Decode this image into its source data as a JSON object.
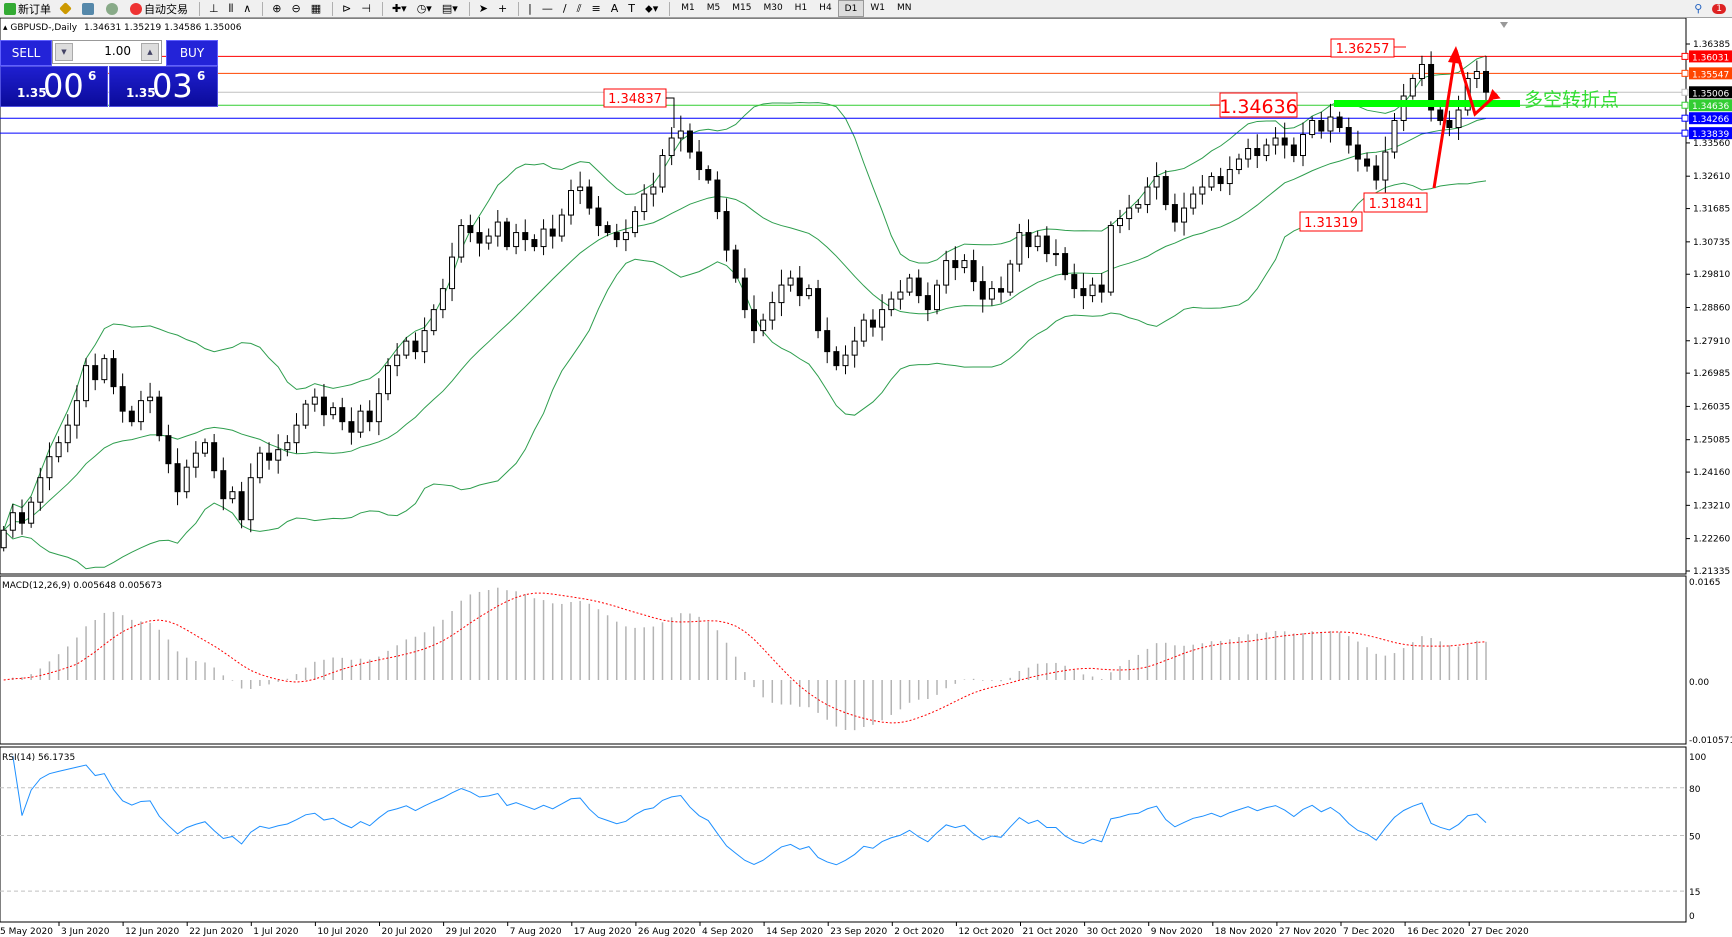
{
  "toolbar": {
    "new_order": "新订单",
    "auto_trading": "自动交易",
    "timeframes": [
      "M1",
      "M5",
      "M15",
      "M30",
      "H1",
      "H4",
      "D1",
      "W1",
      "MN"
    ],
    "active_timeframe": "D1",
    "notification_count": "1"
  },
  "chart_header": {
    "symbol": "GBPUSD-,Daily",
    "ohlc": "1.34631 1.35219 1.34586 1.35006"
  },
  "trade_panel": {
    "sell_label": "SELL",
    "buy_label": "BUY",
    "lot": "1.00",
    "sell_prefix": "1.35",
    "sell_big": "00",
    "sell_sup": "6",
    "buy_prefix": "1.35",
    "buy_big": "03",
    "buy_sup": "6"
  },
  "chart_data": {
    "type": "candlestick",
    "price_axis": {
      "max": 1.36385,
      "min": 1.21335,
      "ticks": [
        "1.36385",
        "1.33560",
        "1.32610",
        "1.31685",
        "1.30735",
        "1.29810",
        "1.28860",
        "1.27910",
        "1.26985",
        "1.26035",
        "1.25085",
        "1.24160",
        "1.23210",
        "1.22260",
        "1.21335"
      ]
    },
    "horizontal_lines": [
      {
        "price": "1.36031",
        "color": "#ff0000"
      },
      {
        "price": "1.35547",
        "color": "#ff4500"
      },
      {
        "price": "1.35006",
        "color": "#c0c0c0",
        "label_bg": "#000000"
      },
      {
        "price": "1.34636",
        "color": "#32cd32"
      },
      {
        "price": "1.34266",
        "color": "#0000ff"
      },
      {
        "price": "1.33839",
        "color": "#0000ff"
      }
    ],
    "annotations": [
      "1.34837",
      "1.36257",
      "1.34636",
      "1.31319",
      "1.31841"
    ],
    "turning_point_text": "多空转折点",
    "first_open": 1.22,
    "closes": [
      1.225,
      1.23,
      1.227,
      1.233,
      1.24,
      1.246,
      1.25,
      1.255,
      1.262,
      1.272,
      1.268,
      1.274,
      1.266,
      1.259,
      1.256,
      1.262,
      1.263,
      1.252,
      1.244,
      1.236,
      1.243,
      1.247,
      1.25,
      1.242,
      1.234,
      1.236,
      1.228,
      1.24,
      1.247,
      1.245,
      1.248,
      1.25,
      1.255,
      1.261,
      1.263,
      1.258,
      1.26,
      1.256,
      1.253,
      1.259,
      1.256,
      1.264,
      1.272,
      1.275,
      1.279,
      1.276,
      1.282,
      1.288,
      1.294,
      1.303,
      1.312,
      1.31,
      1.307,
      1.309,
      1.313,
      1.306,
      1.31,
      1.308,
      1.306,
      1.311,
      1.309,
      1.315,
      1.322,
      1.323,
      1.317,
      1.312,
      1.31,
      1.308,
      1.31,
      1.316,
      1.321,
      1.323,
      1.332,
      1.337,
      1.339,
      1.333,
      1.328,
      1.325,
      1.316,
      1.305,
      1.297,
      1.288,
      1.282,
      1.285,
      1.29,
      1.295,
      1.297,
      1.292,
      1.294,
      1.282,
      1.276,
      1.272,
      1.275,
      1.279,
      1.285,
      1.283,
      1.288,
      1.291,
      1.293,
      1.297,
      1.292,
      1.288,
      1.295,
      1.302,
      1.3,
      1.302,
      1.296,
      1.291,
      1.294,
      1.293,
      1.301,
      1.31,
      1.306,
      1.309,
      1.304,
      1.304,
      1.298,
      1.294,
      1.292,
      1.295,
      1.293,
      1.312,
      1.314,
      1.317,
      1.318,
      1.323,
      1.326,
      1.318,
      1.313,
      1.317,
      1.321,
      1.323,
      1.326,
      1.324,
      1.328,
      1.331,
      1.334,
      1.332,
      1.335,
      1.337,
      1.335,
      1.332,
      1.338,
      1.342,
      1.339,
      1.343,
      1.34,
      1.335,
      1.331,
      1.329,
      1.325,
      1.333,
      1.342,
      1.349,
      1.354,
      1.358,
      1.345,
      1.342,
      1.34,
      1.345,
      1.354,
      1.356,
      1.3501
    ],
    "date_labels": [
      "5 May 2020",
      "3 Jun 2020",
      "12 Jun 2020",
      "22 Jun 2020",
      "1 Jul 2020",
      "10 Jul 2020",
      "20 Jul 2020",
      "29 Jul 2020",
      "7 Aug 2020",
      "17 Aug 2020",
      "26 Aug 2020",
      "4 Sep 2020",
      "14 Sep 2020",
      "23 Sep 2020",
      "2 Oct 2020",
      "12 Oct 2020",
      "21 Oct 2020",
      "30 Oct 2020",
      "9 Nov 2020",
      "18 Nov 2020",
      "27 Nov 2020",
      "7 Dec 2020",
      "16 Dec 2020",
      "27 Dec 2020"
    ],
    "colors": {
      "bands": "#2e9e4e",
      "macd_hist": "#b4b4b4",
      "macd_signal": "#ff0000",
      "rsi": "#1e90ff",
      "arrow": "#ff0000",
      "turning_bar": "#00ff00"
    }
  },
  "macd": {
    "label": "MACD(12,26,9) 0.005648 0.005673",
    "max": 0.0165,
    "min": -0.010571,
    "ticks": [
      "0.0165",
      "0.00",
      "-0.010571"
    ]
  },
  "rsi": {
    "label": "RSI(14) 56.1735",
    "ticks": [
      "100",
      "80",
      "50",
      "15",
      "0"
    ]
  }
}
